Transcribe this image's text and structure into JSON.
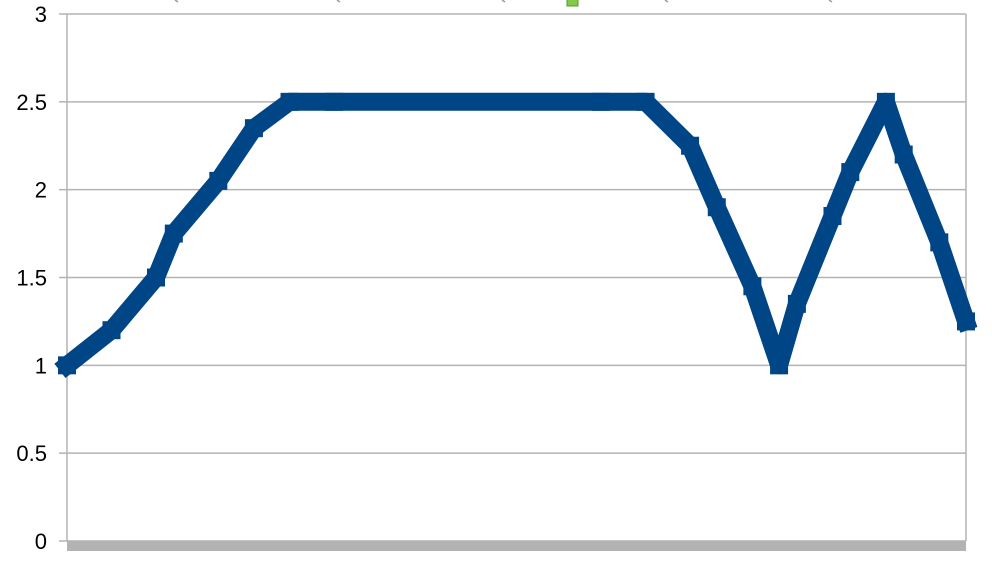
{
  "chart_data": {
    "type": "line",
    "title": "",
    "xlabel": "",
    "ylabel": "",
    "ylim": [
      0,
      3
    ],
    "y_ticks": [
      "0",
      "0.5",
      "1",
      "1.5",
      "2",
      "2.5",
      "3"
    ],
    "grid": true,
    "legend": "none",
    "x": [
      0,
      5,
      10,
      12,
      17,
      21,
      25,
      30,
      60,
      65,
      70,
      73,
      77,
      80,
      82,
      86,
      88,
      92,
      94,
      98,
      101
    ],
    "series": [
      {
        "values": [
          1.0,
          1.2,
          1.5,
          1.75,
          2.05,
          2.35,
          2.5,
          2.5,
          2.5,
          2.5,
          2.25,
          1.9,
          1.45,
          1.0,
          1.35,
          1.85,
          2.1,
          2.5,
          2.2,
          1.7,
          1.25
        ],
        "color": "#004586"
      }
    ]
  },
  "colors": {
    "series": "#004586",
    "grid": "#b3b3b3",
    "legend_marker": "#83ca4b"
  }
}
